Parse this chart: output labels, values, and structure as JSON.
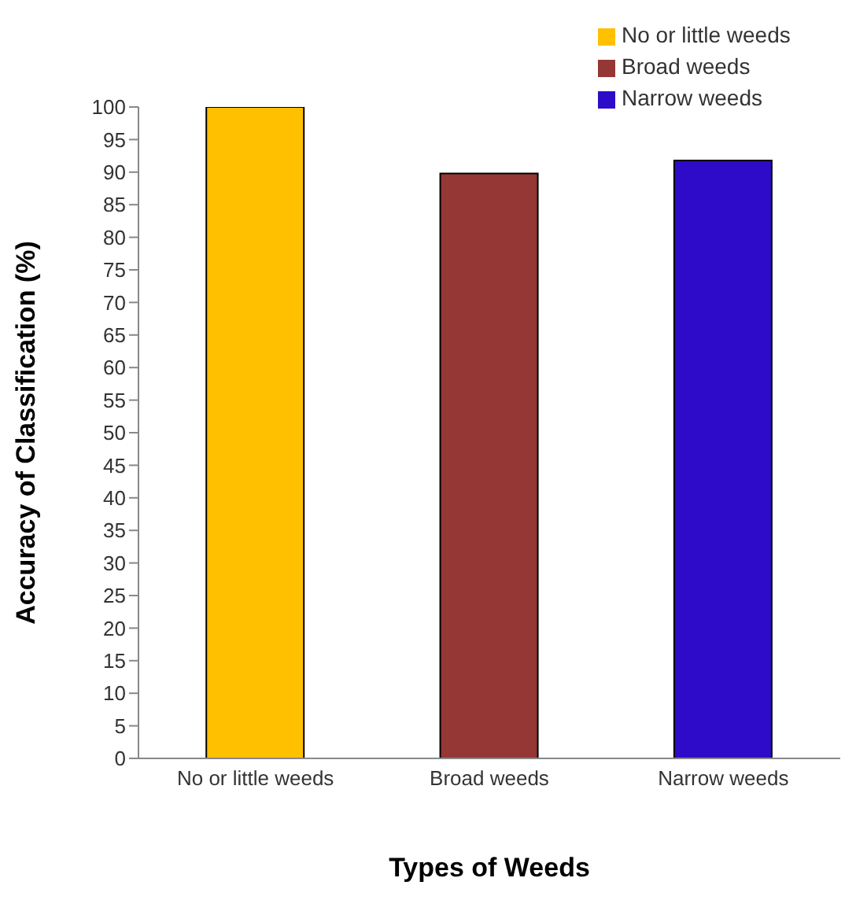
{
  "chart_data": {
    "type": "bar",
    "xlabel": "Types of Weeds",
    "ylabel": "Accuracy of Classification (%)",
    "categories": [
      "No or little  weeds",
      "Broad weeds",
      "Narrow weeds"
    ],
    "series": [
      {
        "name": "No or little  weeds",
        "color": "#ffc000",
        "values": [
          100,
          null,
          null
        ]
      },
      {
        "name": "Broad weeds",
        "color": "#953735",
        "values": [
          null,
          89.8,
          null
        ]
      },
      {
        "name": "Narrow weeds",
        "color": "#2e0bc8",
        "values": [
          null,
          null,
          91.8
        ]
      }
    ],
    "stacked": true,
    "ylim": [
      0,
      100
    ],
    "yticks": [
      0,
      5,
      10,
      15,
      20,
      25,
      30,
      35,
      40,
      45,
      50,
      55,
      60,
      65,
      70,
      75,
      80,
      85,
      90,
      95,
      100
    ],
    "grid": false,
    "legend": "top right"
  }
}
